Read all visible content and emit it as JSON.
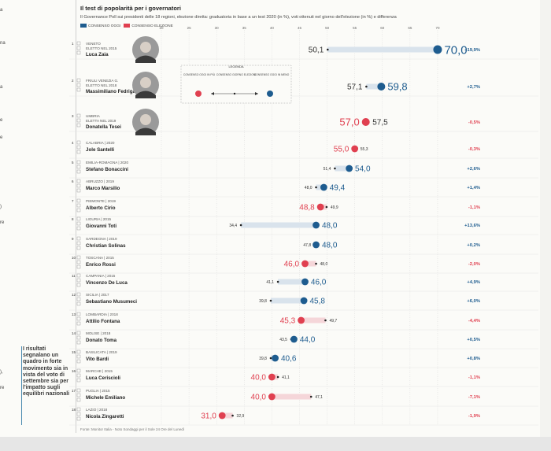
{
  "title": "Il test di popolarità per i governatori",
  "subtitle": "Il Governance Poll sui presidenti delle 18 regioni, elezione diretta: graduatoria in base a un test 2020 (in %), voti ottenuti nel giorno dell'elezione (in %) e differenza",
  "legend": {
    "consenso_label": "CONSENSO OGGI",
    "elezione_label": "CONSENSO ELEZIONE"
  },
  "footnote": "Fonte: Monitor Italia - Noto Sondaggi per il Sole 24 Ore del Lunedì",
  "side_note": "I risultati segnalano un quadro in forte movimento sia in vista del voto di settembre sia per l'impatto sugli equilibri nazionali",
  "inset": {
    "title": "LEGENDA",
    "items": [
      "CONSENSO OGGI IN PIÙ",
      "CONSENSO GIORNO ELEZIONI",
      "CONSENSO OGGI IN MENO"
    ]
  },
  "colors": {
    "blue": "#1e5c8f",
    "red": "#e04050",
    "blue_bar": "#d9e3ec",
    "red_bar": "#f5d6d9",
    "positive": "#1e5c8f",
    "negative": "#e04050"
  },
  "chart_data": {
    "type": "dot-range",
    "xlim": [
      20,
      72
    ],
    "ticks": [
      20,
      25,
      30,
      35,
      40,
      45,
      50,
      55,
      60,
      65,
      70
    ],
    "series_note": "consenso = gradimento oggi; elezione = voti al giorno delle elezioni; diff = differenza",
    "rows": [
      {
        "rank": "1",
        "region": "VENETO",
        "elected": "ELETTO NEL 2015",
        "name": "Luca Zaia",
        "consenso": 70.0,
        "consenso_label": "70,0",
        "elezione": 50.1,
        "elezione_label": "50,1",
        "diff": "+19,9%",
        "photo": true
      },
      {
        "rank": "2",
        "region": "FRIULI VENEZIA G.",
        "elected": "ELETTO NEL 2018",
        "name": "Massimiliano Fedriga",
        "consenso": 59.8,
        "consenso_label": "59,8",
        "elezione": 57.1,
        "elezione_label": "57,1",
        "diff": "+2,7%",
        "photo": true
      },
      {
        "rank": "3",
        "region": "UMBRIA",
        "elected": "ELETTA NEL 2019",
        "name": "Donatella Tesei",
        "consenso": 57.0,
        "consenso_label": "57,0",
        "elezione": 57.5,
        "elezione_label": "57,5",
        "diff": "-0,5%",
        "photo": true
      },
      {
        "rank": "4",
        "region": "CALABRIA | 2020",
        "elected": "",
        "name": "Jole Santelli",
        "consenso": 55.0,
        "consenso_label": "55,0",
        "elezione": 55.3,
        "elezione_label": "55,3",
        "diff": "-0,3%"
      },
      {
        "rank": "5",
        "region": "EMILIA-ROMAGNA | 2020",
        "elected": "",
        "name": "Stefano Bonaccini",
        "consenso": 54.0,
        "consenso_label": "54,0",
        "elezione": 51.4,
        "elezione_label": "51,4",
        "diff": "+2,6%"
      },
      {
        "rank": "6",
        "region": "ABRUZZO | 2019",
        "elected": "",
        "name": "Marco Marsilio",
        "consenso": 49.4,
        "consenso_label": "49,4",
        "elezione": 48.0,
        "elezione_label": "48,0",
        "diff": "+1,4%"
      },
      {
        "rank": "7",
        "region": "PIEMONTE | 2019",
        "elected": "",
        "name": "Alberto Cirio",
        "consenso": 48.8,
        "consenso_label": "48,8",
        "elezione": 49.9,
        "elezione_label": "49,9",
        "diff": "-1,1%"
      },
      {
        "rank": "8",
        "region": "LIGURIA | 2015",
        "elected": "",
        "name": "Giovanni Toti",
        "consenso": 48.0,
        "consenso_label": "48,0",
        "elezione": 34.4,
        "elezione_label": "34,4",
        "diff": "+13,6%"
      },
      {
        "rank": "9",
        "region": "SARDEGNA | 2019",
        "elected": "",
        "name": "Christian Solinas",
        "consenso": 48.0,
        "consenso_label": "48,0",
        "elezione": 47.8,
        "elezione_label": "47,8",
        "diff": "+0,2%"
      },
      {
        "rank": "10",
        "region": "TOSCANA | 2015",
        "elected": "",
        "name": "Enrico Rossi",
        "consenso": 46.0,
        "consenso_label": "46,0",
        "elezione": 48.0,
        "elezione_label": "48,0",
        "diff": "-2,0%"
      },
      {
        "rank": "11",
        "region": "CAMPANIA | 2015",
        "elected": "",
        "name": "Vincenzo De Luca",
        "consenso": 46.0,
        "consenso_label": "46,0",
        "elezione": 41.1,
        "elezione_label": "41,1",
        "diff": "+4,9%"
      },
      {
        "rank": "12",
        "region": "SICILIA | 2017",
        "elected": "",
        "name": "Sebastiano Musumeci",
        "consenso": 45.8,
        "consenso_label": "45,8",
        "elezione": 39.8,
        "elezione_label": "39,8",
        "diff": "+6,0%"
      },
      {
        "rank": "13",
        "region": "LOMBARDIA | 2018",
        "elected": "",
        "name": "Attilio Fontana",
        "consenso": 45.3,
        "consenso_label": "45,3",
        "elezione": 49.7,
        "elezione_label": "49,7",
        "diff": "-4,4%"
      },
      {
        "rank": "14",
        "region": "MOLISE | 2018",
        "elected": "",
        "name": "Donato Toma",
        "consenso": 44.0,
        "consenso_label": "44,0",
        "elezione": 43.5,
        "elezione_label": "43,5",
        "diff": "+0,5%"
      },
      {
        "rank": "15",
        "region": "BASILICATA | 2019",
        "elected": "",
        "name": "Vito Bardi",
        "consenso": 40.6,
        "consenso_label": "40,6",
        "elezione": 39.8,
        "elezione_label": "39,8",
        "diff": "+0,8%"
      },
      {
        "rank": "16",
        "region": "MARCHE | 2015",
        "elected": "",
        "name": "Luca Ceriscioli",
        "consenso": 40.0,
        "consenso_label": "40,0",
        "elezione": 41.1,
        "elezione_label": "41,1",
        "diff": "-1,1%"
      },
      {
        "rank": "17",
        "region": "PUGLIA | 2015",
        "elected": "",
        "name": "Michele Emiliano",
        "consenso": 40.0,
        "consenso_label": "40,0",
        "elezione": 47.1,
        "elezione_label": "47,1",
        "diff": "-7,1%"
      },
      {
        "rank": "18",
        "region": "LAZIO | 2018",
        "elected": "",
        "name": "Nicola Zingaretti",
        "consenso": 31.0,
        "consenso_label": "31,0",
        "elezione": 32.9,
        "elezione_label": "32,9",
        "diff": "-1,9%"
      }
    ]
  }
}
